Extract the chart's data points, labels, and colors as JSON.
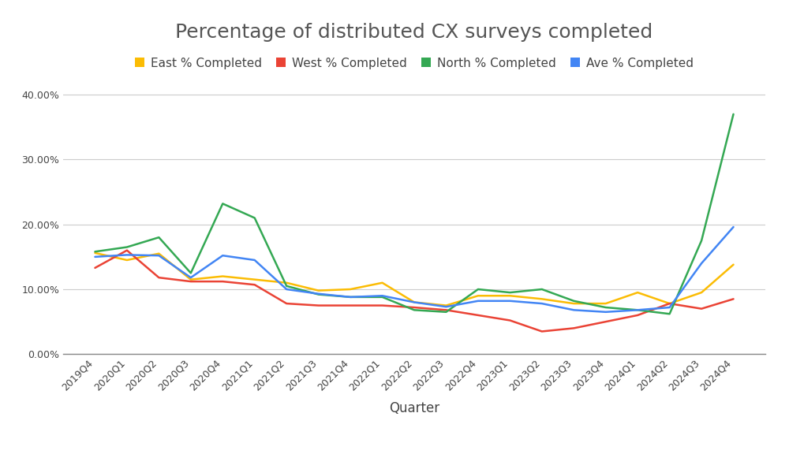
{
  "title": "Percentage of distributed CX surveys completed",
  "xlabel": "Quarter",
  "ylabel": "",
  "quarters": [
    "2019Q4",
    "2020Q1",
    "2020Q2",
    "2020Q3",
    "2020Q4",
    "2021Q1",
    "2021Q2",
    "2021Q3",
    "2021Q4",
    "2022Q1",
    "2022Q2",
    "2022Q3",
    "2022Q4",
    "2023Q1",
    "2023Q2",
    "2023Q3",
    "2023Q4",
    "2024Q1",
    "2024Q2",
    "2024Q3",
    "2024Q4"
  ],
  "east": [
    0.156,
    0.145,
    0.155,
    0.115,
    0.12,
    0.115,
    0.11,
    0.098,
    0.1,
    0.11,
    0.08,
    0.075,
    0.09,
    0.09,
    0.085,
    0.078,
    0.078,
    0.095,
    0.078,
    0.095,
    0.138
  ],
  "west": [
    0.133,
    0.16,
    0.118,
    0.112,
    0.112,
    0.107,
    0.078,
    0.075,
    0.075,
    0.075,
    0.072,
    0.068,
    0.06,
    0.052,
    0.035,
    0.04,
    0.05,
    0.06,
    0.078,
    0.07,
    0.085
  ],
  "north": [
    0.158,
    0.165,
    0.18,
    0.125,
    0.232,
    0.21,
    0.105,
    0.092,
    0.088,
    0.088,
    0.068,
    0.065,
    0.1,
    0.095,
    0.1,
    0.082,
    0.072,
    0.068,
    0.062,
    0.175,
    0.37
  ],
  "ave": [
    0.15,
    0.153,
    0.152,
    0.118,
    0.152,
    0.145,
    0.1,
    0.093,
    0.088,
    0.09,
    0.08,
    0.073,
    0.082,
    0.082,
    0.078,
    0.068,
    0.065,
    0.068,
    0.072,
    0.14,
    0.196
  ],
  "east_color": "#FBBC04",
  "west_color": "#EA4335",
  "north_color": "#34A853",
  "ave_color": "#4285F4",
  "east_label": "East % Completed",
  "west_label": "West % Completed",
  "north_label": "North % Completed",
  "ave_label": "Ave % Completed",
  "ylim": [
    0.0,
    0.42
  ],
  "yticks": [
    0.0,
    0.1,
    0.2,
    0.3,
    0.4
  ],
  "background_color": "#ffffff",
  "grid_color": "#cccccc",
  "title_fontsize": 18,
  "title_color": "#555555",
  "legend_fontsize": 11,
  "axis_label_fontsize": 12,
  "tick_fontsize": 9,
  "line_width": 1.8
}
